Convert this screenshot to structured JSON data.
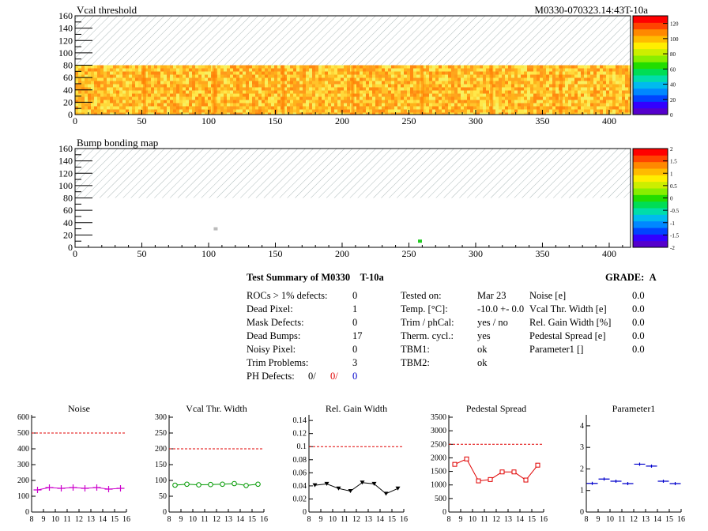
{
  "header": {
    "title": "Vcal threshold",
    "run_id": "M0330-070323.14:43T-10a"
  },
  "maps": [
    {
      "id": "vcal",
      "title": "Vcal threshold",
      "x_ticks": [
        "0",
        "50",
        "100",
        "150",
        "200",
        "250",
        "300",
        "350",
        "400"
      ],
      "y_ticks": [
        "0",
        "20",
        "40",
        "60",
        "80",
        "100",
        "120",
        "140",
        "160"
      ],
      "xlim": [
        0,
        416
      ],
      "ylim": [
        0,
        160
      ],
      "data_rows": [
        0,
        80
      ],
      "roc_boundaries": [
        52,
        104,
        156,
        208,
        260,
        312,
        364
      ],
      "hatched_region": [
        80,
        160
      ],
      "palette_scale_labels": [
        "0",
        "20",
        "40",
        "60",
        "80",
        "100",
        "120"
      ],
      "palette_max": 130
    },
    {
      "id": "bump",
      "title": "Bump bonding map",
      "x_ticks": [
        "0",
        "50",
        "100",
        "150",
        "200",
        "250",
        "300",
        "350",
        "400"
      ],
      "y_ticks": [
        "0",
        "20",
        "40",
        "60",
        "80",
        "100",
        "120",
        "140",
        "160"
      ],
      "xlim": [
        0,
        416
      ],
      "ylim": [
        0,
        160
      ],
      "hatched_region": [
        80,
        160
      ],
      "palette_scale_labels": [
        "-2",
        "-1.5",
        "-1",
        "-0.5",
        "0",
        "0.5",
        "1",
        "1.5",
        "2"
      ],
      "palette_min": -2,
      "palette_max": 2,
      "marks": [
        {
          "x": 258,
          "y": 10,
          "color": "#22cc22"
        },
        {
          "x": 105,
          "y": 30,
          "color": "#bbbbbb"
        }
      ]
    }
  ],
  "summary": {
    "title": "Test Summary of M0330",
    "temperature_tag": "T-10a",
    "grade_label": "GRADE:",
    "grade": "A",
    "defects": [
      {
        "label": "ROCs > 1% defects:",
        "value": "0"
      },
      {
        "label": "Dead Pixel:",
        "value": "1"
      },
      {
        "label": "Mask Defects:",
        "value": "0"
      },
      {
        "label": "Dead Bumps:",
        "value": "17"
      },
      {
        "label": "Noisy Pixel:",
        "value": "0"
      },
      {
        "label": "Trim Problems:",
        "value": "3"
      }
    ],
    "ph_defects": {
      "label": "PH Defects:",
      "v1": "0/",
      "v2": "0/",
      "v3": "0"
    },
    "conditions": [
      {
        "label": "Tested on:",
        "value": "Mar 23"
      },
      {
        "label": "Temp. [°C]:",
        "value": "-10.0 +- 0.0"
      },
      {
        "label": "Trim / phCal:",
        "value": "yes / no"
      },
      {
        "label": "Therm. cycl.:",
        "value": "yes"
      },
      {
        "label": "TBM1:",
        "value": "ok"
      },
      {
        "label": "TBM2:",
        "value": "ok"
      }
    ],
    "widths": [
      {
        "label": "Noise [e]",
        "value": "0.0"
      },
      {
        "label": "Vcal Thr. Width [e]",
        "value": "0.0"
      },
      {
        "label": "Rel. Gain Width [%]",
        "value": "0.0"
      },
      {
        "label": "Pedestal Spread [e]",
        "value": "0.0"
      },
      {
        "label": "Parameter1 []",
        "value": "0.0"
      }
    ]
  },
  "chart_data": [
    {
      "type": "line",
      "title": "Noise",
      "color": "#cc00cc",
      "marker": "cross",
      "x": [
        8.5,
        9.5,
        10.5,
        11.5,
        12.5,
        13.5,
        14.5,
        15.5
      ],
      "values": [
        140,
        155,
        150,
        155,
        150,
        155,
        145,
        150
      ],
      "limit": 500,
      "xlim": [
        8,
        16
      ],
      "ylim": [
        0,
        600
      ],
      "x_ticks": [
        8,
        9,
        10,
        11,
        12,
        13,
        14,
        15,
        16
      ],
      "y_ticks": [
        0,
        100,
        200,
        300,
        400,
        500,
        600
      ]
    },
    {
      "type": "line",
      "title": "Vcal Thr. Width",
      "color": "#009900",
      "marker": "open-circle",
      "x": [
        8.5,
        9.5,
        10.5,
        11.5,
        12.5,
        13.5,
        14.5,
        15.5
      ],
      "values": [
        85,
        88,
        86,
        87,
        88,
        90,
        84,
        88
      ],
      "limit": 200,
      "xlim": [
        8,
        16
      ],
      "ylim": [
        0,
        300
      ],
      "x_ticks": [
        8,
        9,
        10,
        11,
        12,
        13,
        14,
        15,
        16
      ],
      "y_ticks": [
        0,
        50,
        100,
        150,
        200,
        250,
        300
      ]
    },
    {
      "type": "line",
      "title": "Rel. Gain Width",
      "color": "#000000",
      "marker": "down-triangle",
      "x": [
        8.5,
        9.5,
        10.5,
        11.5,
        12.5,
        13.5,
        14.5,
        15.5
      ],
      "values": [
        0.041,
        0.043,
        0.036,
        0.032,
        0.045,
        0.043,
        0.028,
        0.036
      ],
      "limit": 0.1,
      "xlim": [
        8,
        16
      ],
      "ylim": [
        0,
        0.145
      ],
      "x_ticks": [
        8,
        9,
        10,
        11,
        12,
        13,
        14,
        15,
        16
      ],
      "y_ticks": [
        0,
        0.02,
        0.04,
        0.06,
        0.08,
        0.1,
        0.12,
        0.14
      ]
    },
    {
      "type": "line",
      "title": "Pedestal Spread",
      "color": "#e00000",
      "marker": "open-square",
      "x": [
        8.5,
        9.5,
        10.5,
        11.5,
        12.5,
        13.5,
        14.5,
        15.5
      ],
      "values": [
        1760,
        1960,
        1150,
        1200,
        1480,
        1480,
        1180,
        1730
      ],
      "limit": 2500,
      "xlim": [
        8,
        16
      ],
      "ylim": [
        0,
        3500
      ],
      "x_ticks": [
        8,
        9,
        10,
        11,
        12,
        13,
        14,
        15,
        16
      ],
      "y_ticks": [
        0,
        500,
        1000,
        1500,
        2000,
        2500,
        3000,
        3500
      ]
    },
    {
      "type": "scatter",
      "title": "Parameter1",
      "color": "#0000cc",
      "marker": "horizontal-bar",
      "x": [
        8.5,
        9.5,
        10.5,
        11.5,
        12.5,
        13.5,
        14.5,
        15.5
      ],
      "values": [
        1.33,
        1.53,
        1.43,
        1.32,
        2.22,
        2.13,
        1.43,
        1.32
      ],
      "xlim": [
        8,
        16
      ],
      "ylim": [
        0,
        4.4
      ],
      "x_ticks": [
        8,
        9,
        10,
        11,
        12,
        13,
        14,
        15,
        16
      ],
      "y_ticks": [
        0,
        1,
        2,
        3,
        4
      ]
    }
  ]
}
